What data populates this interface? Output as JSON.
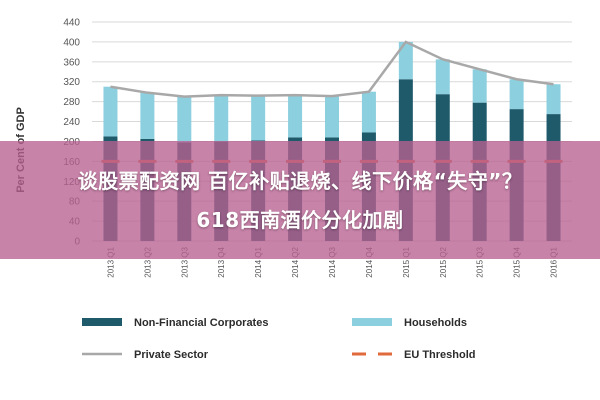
{
  "chart_data": {
    "type": "bar",
    "stacked": true,
    "categories": [
      "2013 Q1",
      "2013 Q2",
      "2013 Q3",
      "2013 Q4",
      "2014 Q1",
      "2014 Q2",
      "2014 Q3",
      "2014 Q4",
      "2015 Q1",
      "2015 Q2",
      "2015 Q3",
      "2015 Q4",
      "2016 Q1"
    ],
    "series": [
      {
        "name": "Non-Financial Corporates",
        "kind": "bar",
        "color": "#1f5a6b",
        "values": [
          210,
          205,
          198,
          200,
          202,
          208,
          208,
          218,
          325,
          295,
          278,
          265,
          255
        ]
      },
      {
        "name": "Households",
        "kind": "bar",
        "color": "#8ccfde",
        "values": [
          100,
          93,
          92,
          93,
          90,
          85,
          83,
          82,
          75,
          70,
          67,
          60,
          60
        ]
      },
      {
        "name": "Private Sector",
        "kind": "line",
        "color": "#a8a8a8",
        "values": [
          310,
          298,
          290,
          293,
          292,
          293,
          291,
          300,
          400,
          365,
          345,
          325,
          315
        ]
      },
      {
        "name": "EU Threshold",
        "kind": "dashed-line",
        "color": "#e06a3c",
        "values": [
          160,
          160,
          160,
          160,
          160,
          160,
          160,
          160,
          160,
          160,
          160,
          160,
          160
        ]
      }
    ],
    "ylabel": "Per Cent of GDP",
    "ylim": [
      0,
      440
    ],
    "yticks": [
      0,
      40,
      80,
      120,
      160,
      200,
      240,
      280,
      320,
      360,
      400,
      440
    ],
    "grid": true,
    "legend_position": "bottom"
  },
  "overlay": {
    "line1": "谈股票配资网 百亿补贴退烧、线下价格“失守”？",
    "line2": "618西南酒价分化加剧"
  }
}
